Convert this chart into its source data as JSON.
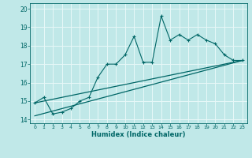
{
  "title": "",
  "xlabel": "Humidex (Indice chaleur)",
  "background_color": "#c0e8e8",
  "grid_color": "#e8f8f8",
  "line_color": "#006666",
  "x_data": [
    0,
    1,
    2,
    3,
    4,
    5,
    6,
    7,
    8,
    9,
    10,
    11,
    12,
    13,
    14,
    15,
    16,
    17,
    18,
    19,
    20,
    21,
    22,
    23
  ],
  "y_main": [
    14.9,
    15.2,
    14.3,
    14.4,
    14.6,
    15.0,
    15.2,
    16.3,
    17.0,
    17.0,
    17.5,
    18.5,
    17.1,
    17.1,
    19.6,
    18.3,
    18.6,
    18.3,
    18.6,
    18.3,
    18.1,
    17.5,
    17.2,
    17.2
  ],
  "ylim": [
    13.8,
    20.3
  ],
  "xlim": [
    -0.5,
    23.5
  ],
  "yticks": [
    14,
    15,
    16,
    17,
    18,
    19,
    20
  ],
  "xticks": [
    0,
    1,
    2,
    3,
    4,
    5,
    6,
    7,
    8,
    9,
    10,
    11,
    12,
    13,
    14,
    15,
    16,
    17,
    18,
    19,
    20,
    21,
    22,
    23
  ],
  "line1_x": [
    0,
    23
  ],
  "line1_y": [
    14.9,
    17.2
  ],
  "line2_x": [
    0,
    23
  ],
  "line2_y": [
    14.2,
    17.2
  ]
}
